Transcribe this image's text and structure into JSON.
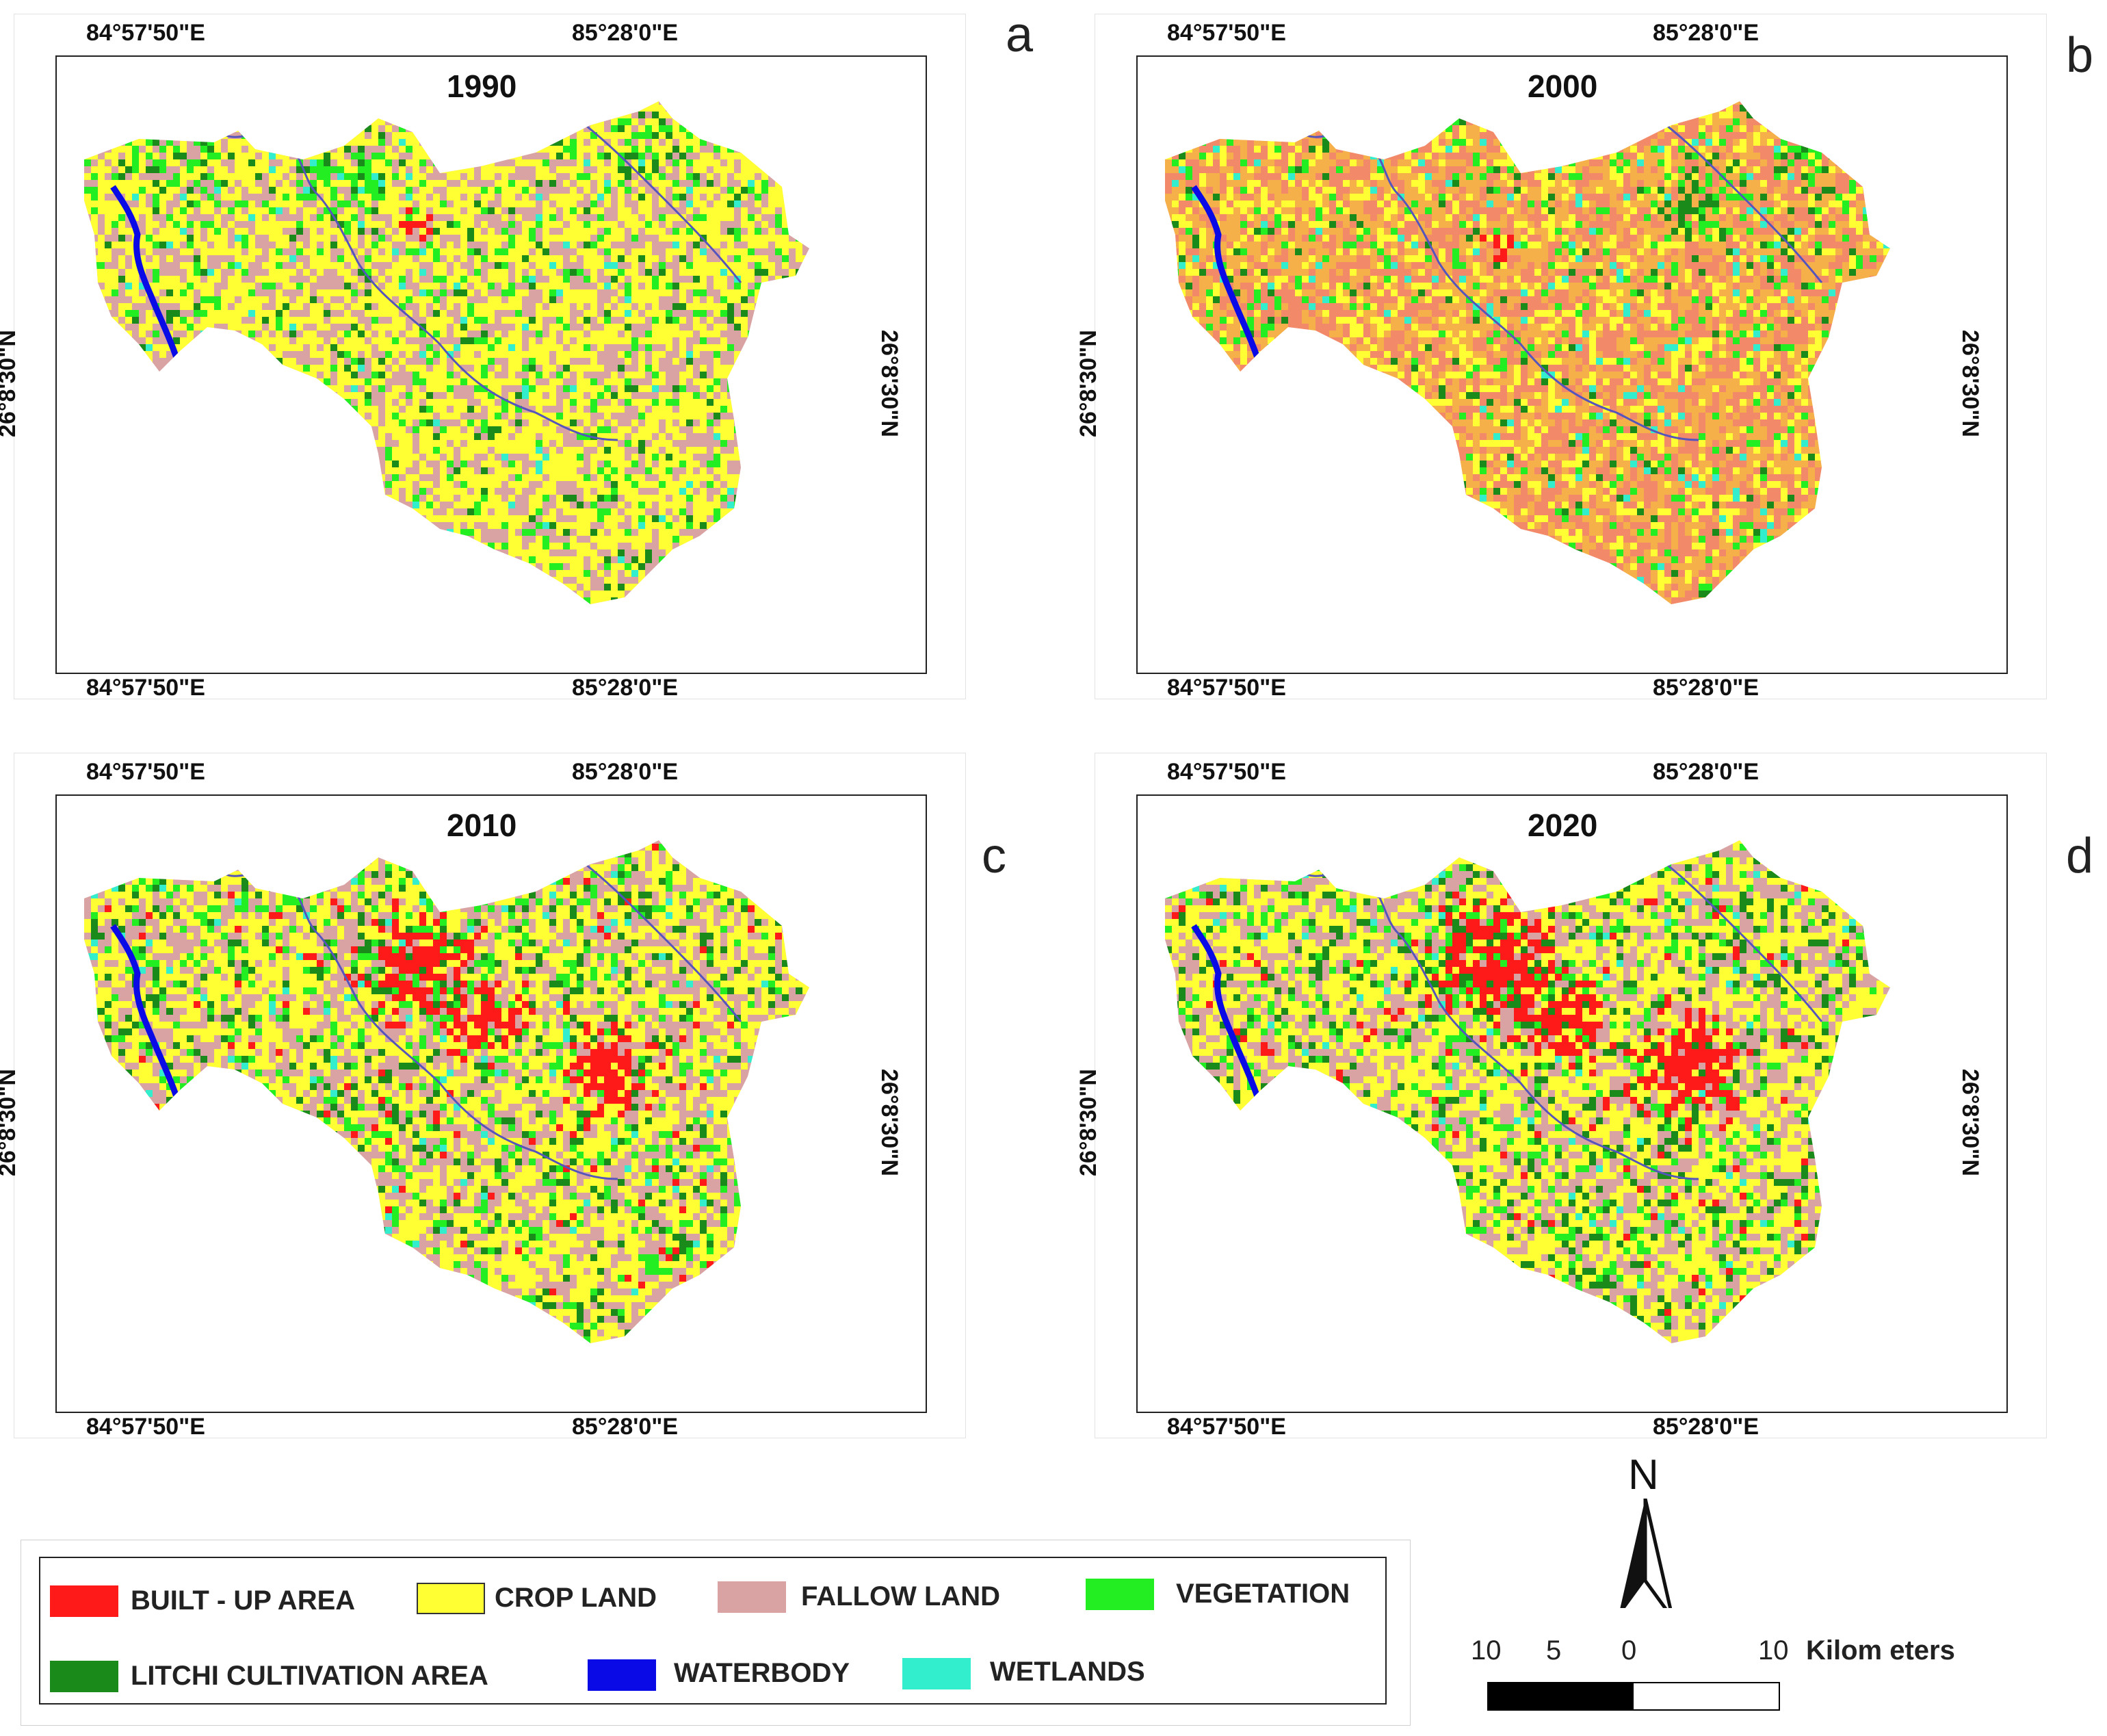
{
  "figure": {
    "panels": [
      {
        "id": "a",
        "letter": "a",
        "year": "1990",
        "style": "early"
      },
      {
        "id": "b",
        "letter": "b",
        "year": "2000",
        "style": "orange"
      },
      {
        "id": "c",
        "letter": "c",
        "year": "2010",
        "style": "urban"
      },
      {
        "id": "d",
        "letter": "d",
        "year": "2020",
        "style": "urban2"
      }
    ],
    "coords": {
      "lon_left": "84°57'50\"E",
      "lon_right": "85°28'0\"E",
      "lat": "26°8'30\"N"
    }
  },
  "legend": {
    "items": [
      {
        "label": "BUILT - UP AREA",
        "color": "#ff1a1a"
      },
      {
        "label": "CROP LAND",
        "color": "#ffff33"
      },
      {
        "label": "FALLOW LAND",
        "color": "#d9a3a3"
      },
      {
        "label": "VEGETATION",
        "color": "#22ee22"
      },
      {
        "label": "LITCHI CULTIVATION AREA",
        "color": "#1a8a1a"
      },
      {
        "label": "WATERBODY",
        "color": "#0a0ae6"
      },
      {
        "label": "WETLANDS",
        "color": "#33eecc"
      }
    ]
  },
  "north_arrow": {
    "label": "N"
  },
  "scale_bar": {
    "ticks": [
      "10",
      "5",
      "0",
      "10"
    ],
    "unit": "Kilom eters"
  }
}
